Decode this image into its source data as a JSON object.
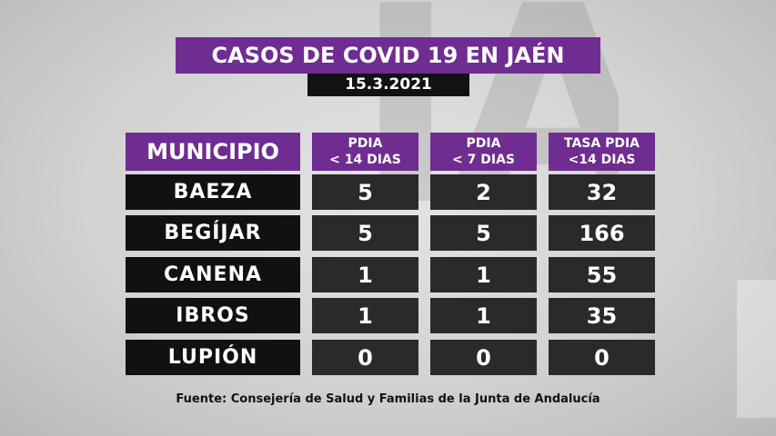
{
  "title": "CASOS DE COVID 19 EN JAÉN",
  "date": "15.3.2021",
  "source": "Fuente: Consejería de Salud y Familias de la Junta de Andalucía",
  "colors": {
    "header_purple": "#6f2c91",
    "label_dark": "#111111",
    "value_dark": "#2a2a2a"
  },
  "chart_data": {
    "type": "table",
    "columns": [
      {
        "line1": "MUNICIPIO",
        "line2": ""
      },
      {
        "line1": "PDIA",
        "line2": "< 14 DIAS"
      },
      {
        "line1": "PDIA",
        "line2": "< 7 DIAS"
      },
      {
        "line1": "TASA PDIA",
        "line2": "<14 DIAS"
      }
    ],
    "rows": [
      [
        "BAEZA",
        "5",
        "2",
        "32"
      ],
      [
        "BEGÍJAR",
        "5",
        "5",
        "166"
      ],
      [
        "CANENA",
        "1",
        "1",
        "55"
      ],
      [
        "IBROS",
        "1",
        "1",
        "35"
      ],
      [
        "LUPIÓN",
        "0",
        "0",
        "0"
      ]
    ]
  }
}
